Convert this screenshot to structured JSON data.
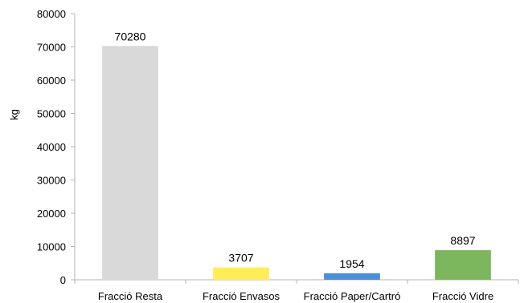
{
  "chart_data": {
    "type": "bar",
    "title": "",
    "xlabel": "",
    "ylabel": "kg",
    "ylim": [
      0,
      80000
    ],
    "yticks": [
      "0",
      "10000",
      "20000",
      "30000",
      "40000",
      "50000",
      "60000",
      "70000",
      "80000"
    ],
    "grid": false,
    "categories": [
      "Fracció Resta",
      "Fracció Envasos",
      "Fracció Paper/Cartró",
      "Fracció Vidre"
    ],
    "values": [
      70280,
      3707,
      1954,
      8897
    ],
    "data_labels": [
      "70280",
      "3707",
      "1954",
      "8897"
    ],
    "colors": [
      "#d9d9d9",
      "#ffee58",
      "#4a90d9",
      "#7cb75e"
    ]
  }
}
